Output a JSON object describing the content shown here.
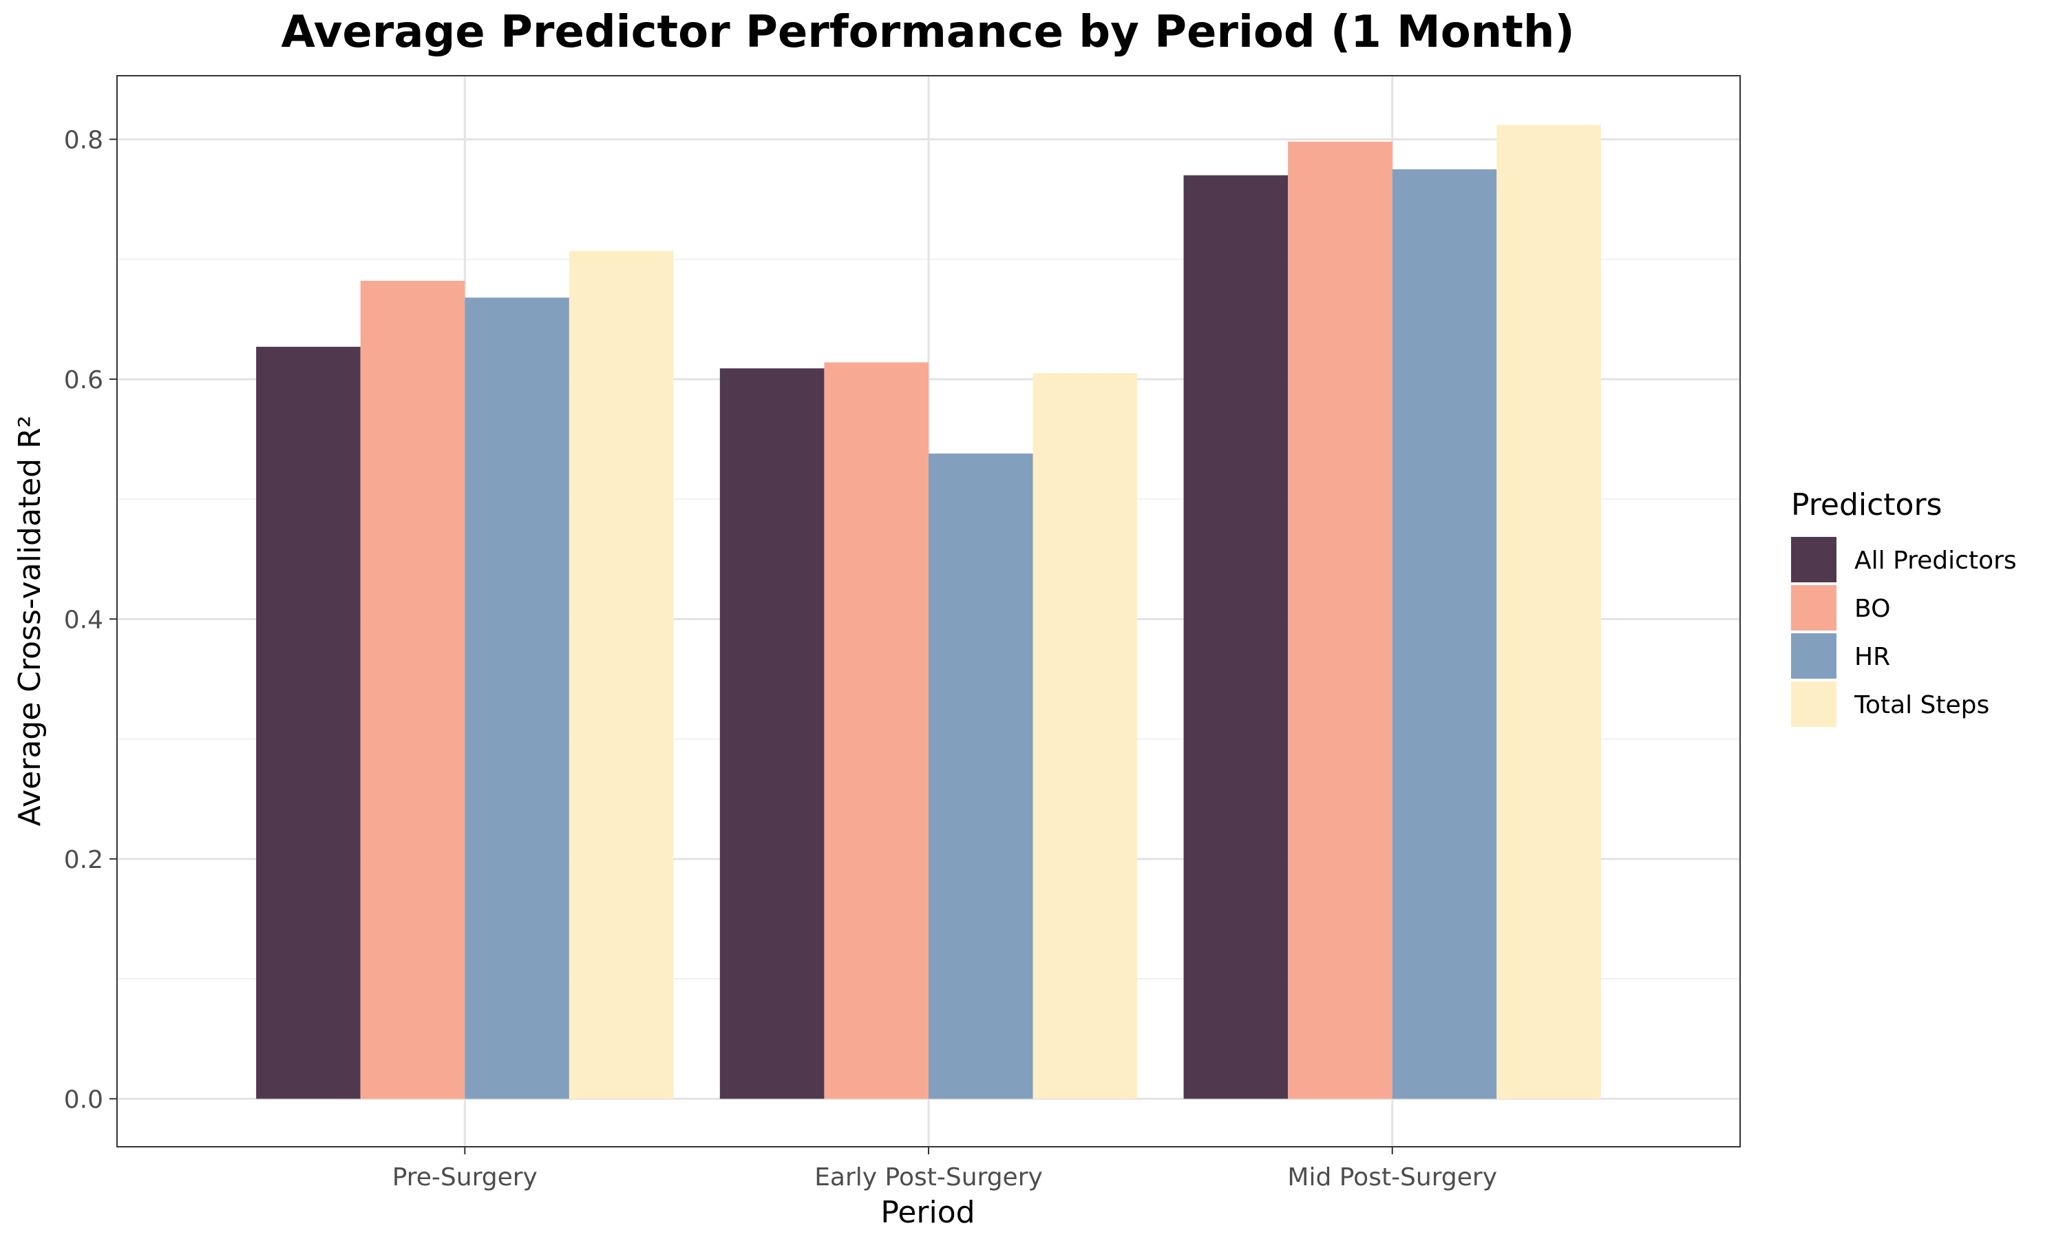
{
  "chart_data": {
    "type": "bar",
    "title": "Average Predictor Performance by Period (1 Month)",
    "xlabel": "Period",
    "ylabel": "Average Cross-validated R²",
    "categories": [
      "Pre-Surgery",
      "Early Post-Surgery",
      "Mid Post-Surgery"
    ],
    "ylim": [
      -0.04,
      0.853
    ],
    "yticks": [
      0.0,
      0.2,
      0.4,
      0.6,
      0.8
    ],
    "ytick_labels": [
      "0.0",
      "0.2",
      "0.4",
      "0.6",
      "0.8"
    ],
    "grid": true,
    "legend": {
      "title": "Predictors",
      "position": "right"
    },
    "series": [
      {
        "name": "All Predictors",
        "color": "#50394f",
        "values": [
          0.627,
          0.609,
          0.77
        ]
      },
      {
        "name": "BO",
        "color": "#f8a994",
        "values": [
          0.682,
          0.614,
          0.798
        ]
      },
      {
        "name": "HR",
        "color": "#82a0bd",
        "values": [
          0.668,
          0.538,
          0.775
        ]
      },
      {
        "name": "Total Steps",
        "color": "#feeec5",
        "values": [
          0.707,
          0.605,
          0.812
        ]
      }
    ]
  }
}
